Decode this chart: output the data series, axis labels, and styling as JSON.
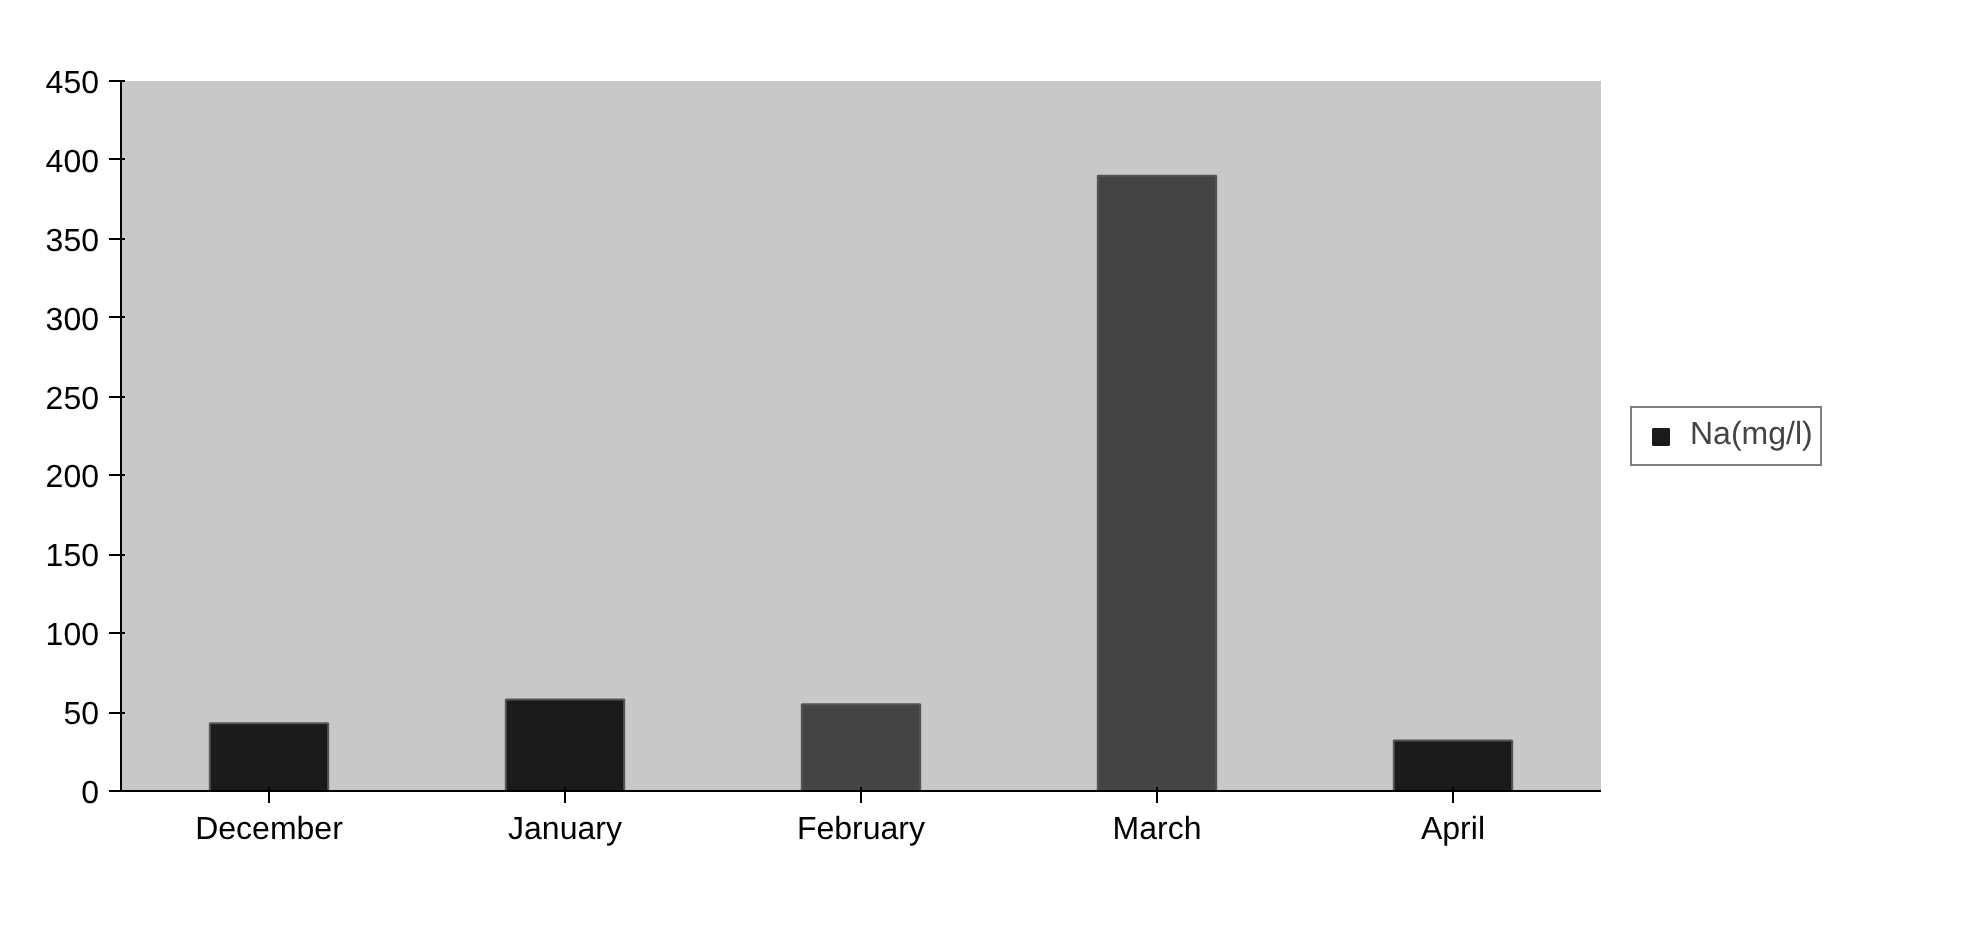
{
  "chart_data": {
    "type": "bar",
    "categories": [
      "December",
      "January",
      "February",
      "March",
      "April"
    ],
    "series": [
      {
        "name": "Na(mg/l)",
        "color": "#1a1a1a",
        "colors": [
          "#1a1a1a",
          "#1a1a1a",
          "#444444",
          "#444444",
          "#1a1a1a"
        ],
        "values": [
          43,
          58,
          55,
          390,
          32
        ]
      }
    ],
    "ylim": [
      0,
      450
    ],
    "yticks": [
      0,
      50,
      100,
      150,
      200,
      250,
      300,
      350,
      400,
      450
    ],
    "grid": false,
    "legend": "right"
  }
}
